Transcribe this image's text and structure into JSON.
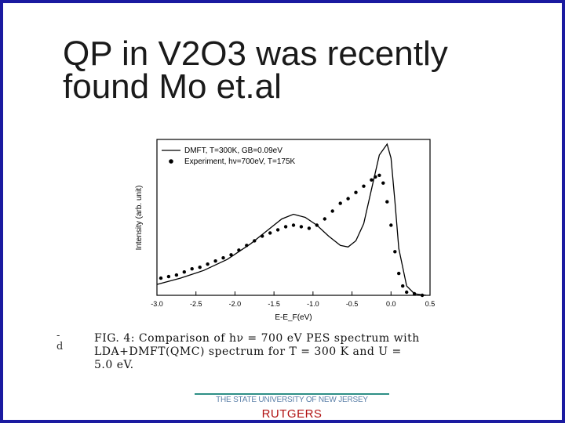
{
  "slide": {
    "title_line1": "QP in V2O3 was recently",
    "title_line2": "found  Mo et.al"
  },
  "figure": {
    "caption_lines": [
      "FIG. 4:  Comparison of hν = 700 eV PES spectrum with",
      "LDA+DMFT(QMC)  spectrum  for  T  =  300  K  and  U  =",
      "5.0 eV."
    ],
    "margin_glyphs": [
      "-",
      "d"
    ]
  },
  "footer": {
    "university": "THE STATE UNIVERSITY OF NEW JERSEY",
    "name": "RUTGERS",
    "rule_color": "#2e8f86",
    "name_color": "#b01010"
  },
  "chart_data": {
    "type": "line",
    "xlabel": "E-E_F(eV)",
    "ylabel": "Intensity (arb. unit)",
    "xlim": [
      -3.0,
      0.5
    ],
    "ylim": [
      0,
      1
    ],
    "xticks": [
      -3.0,
      -2.5,
      -2.0,
      -1.5,
      -1.0,
      -0.5,
      0.0,
      0.5
    ],
    "xtick_labels": [
      "-3.0",
      "-2.5",
      "-2.0",
      "-1.5",
      "-1.0",
      "-0.5",
      "0.0",
      "0.5"
    ],
    "legend_position": "top-left",
    "series": [
      {
        "name": "DMFT, T=300K, GB=0.09eV",
        "style": "line",
        "x": [
          -3.0,
          -2.7,
          -2.4,
          -2.1,
          -1.8,
          -1.6,
          -1.4,
          -1.25,
          -1.1,
          -0.95,
          -0.8,
          -0.65,
          -0.55,
          -0.45,
          -0.35,
          -0.25,
          -0.15,
          -0.05,
          0.0,
          0.05,
          0.1,
          0.2,
          0.3,
          0.45
        ],
        "y": [
          0.07,
          0.11,
          0.16,
          0.23,
          0.33,
          0.41,
          0.49,
          0.52,
          0.5,
          0.45,
          0.38,
          0.32,
          0.31,
          0.35,
          0.46,
          0.68,
          0.9,
          0.97,
          0.88,
          0.6,
          0.3,
          0.06,
          0.01,
          0.0
        ]
      },
      {
        "name": "Experiment, hν=700eV, T=175K",
        "style": "scatter",
        "x": [
          -2.95,
          -2.85,
          -2.75,
          -2.65,
          -2.55,
          -2.45,
          -2.35,
          -2.25,
          -2.15,
          -2.05,
          -1.95,
          -1.85,
          -1.75,
          -1.65,
          -1.55,
          -1.45,
          -1.35,
          -1.25,
          -1.15,
          -1.05,
          -0.95,
          -0.85,
          -0.75,
          -0.65,
          -0.55,
          -0.45,
          -0.35,
          -0.25,
          -0.2,
          -0.15,
          -0.1,
          -0.05,
          0.0,
          0.05,
          0.1,
          0.15,
          0.2,
          0.3,
          0.4
        ],
        "y": [
          0.11,
          0.12,
          0.13,
          0.15,
          0.17,
          0.18,
          0.2,
          0.22,
          0.24,
          0.26,
          0.29,
          0.32,
          0.35,
          0.38,
          0.4,
          0.42,
          0.44,
          0.45,
          0.44,
          0.43,
          0.45,
          0.49,
          0.54,
          0.59,
          0.62,
          0.66,
          0.7,
          0.74,
          0.76,
          0.77,
          0.72,
          0.6,
          0.45,
          0.28,
          0.14,
          0.06,
          0.02,
          0.01,
          0.0
        ]
      }
    ]
  }
}
